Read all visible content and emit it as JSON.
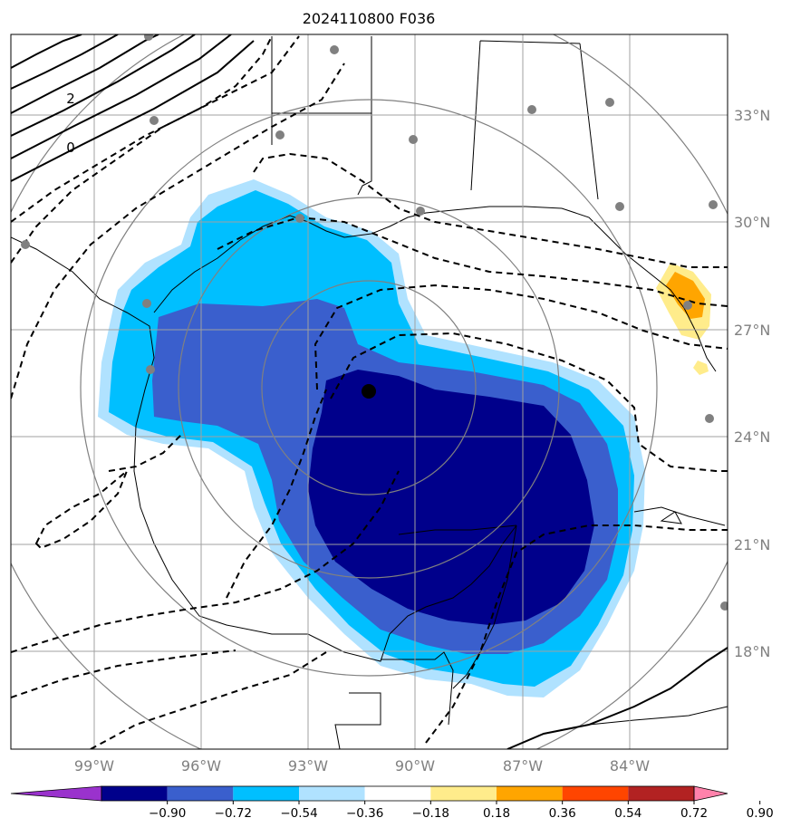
{
  "title": "2024110800 F036",
  "lat_labels": [
    "33°N",
    "30°N",
    "27°N",
    "24°N",
    "21°N",
    "18°N"
  ],
  "lon_labels": [
    "99°W",
    "96°W",
    "93°W",
    "90°W",
    "87°W",
    "84°W"
  ],
  "colorbar": {
    "ticks": [
      "−0.90",
      "−0.72",
      "−0.54",
      "−0.36",
      "−0.18",
      "0.18",
      "0.36",
      "0.54",
      "0.72",
      "0.90"
    ],
    "colors": [
      "#9a32cd",
      "#00008b",
      "#3a5fcd",
      "#00bfff",
      "#b0e2ff",
      "#ffffff",
      "#ffec8b",
      "#ffa500",
      "#ff4500",
      "#b22222",
      "#ff82ab"
    ]
  },
  "contour_labels": [
    "2",
    "0"
  ],
  "colors": {
    "shade_darkest": "#00008b",
    "shade_dark": "#3a5fcd",
    "shade_mid": "#00bfff",
    "shade_light": "#b0e2ff",
    "shade_pos_light": "#ffec8b",
    "shade_pos": "#ffa500",
    "grid": "#a0a0a0",
    "range_rings": "#808080",
    "stations": "#808080"
  }
}
